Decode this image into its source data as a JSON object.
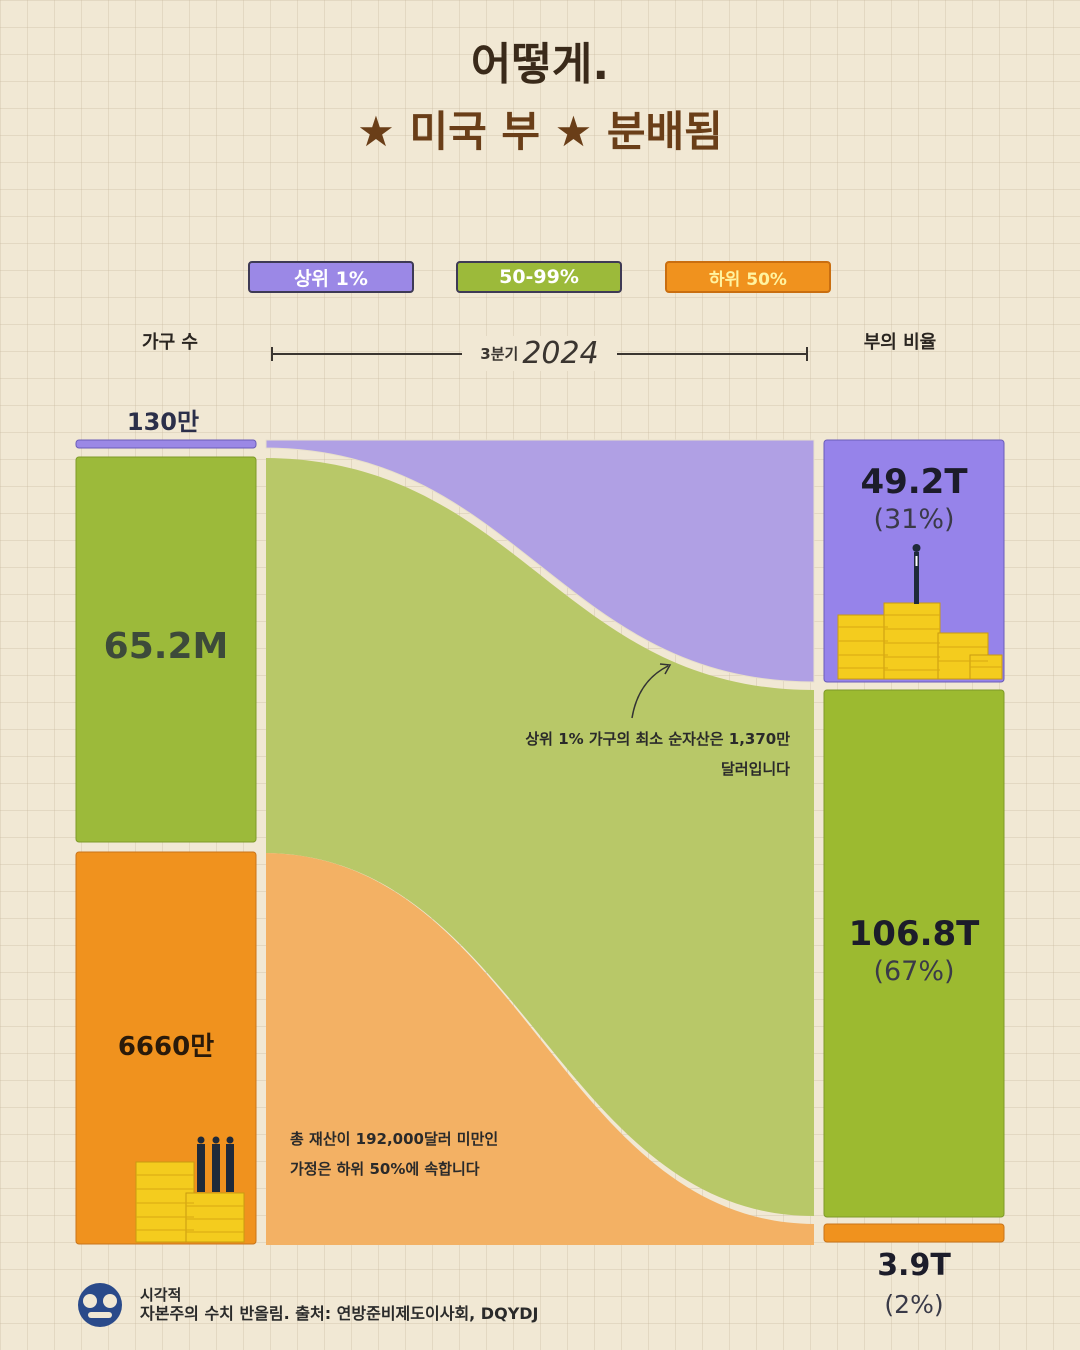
{
  "title": {
    "line1": "어떻게.",
    "line2": "★ 미국 부 ★ 분배됨"
  },
  "legend": [
    {
      "label": "상위 1%",
      "color": "#9b88e6"
    },
    {
      "label": "50-99%",
      "color": "#9cba3a"
    },
    {
      "label": "하위 50%",
      "color": "#f0921e"
    }
  ],
  "headers": {
    "households": "가구 수",
    "wealth_share": "부의 비율",
    "quarter": "3분기",
    "year": "2024"
  },
  "chart_data": {
    "type": "sankey",
    "period": "3분기 2024",
    "left_axis_label": "가구 수",
    "right_axis_label": "부의 비율",
    "series": [
      {
        "name": "상위 1%",
        "households_label": "130만",
        "households": 1300000,
        "wealth_label": "49.2T",
        "wealth_trillion_usd": 49.2,
        "share_label": "(31%)",
        "share_pct": 31,
        "color": "#9b88e6"
      },
      {
        "name": "50-99%",
        "households_label": "65.2M",
        "households": 65200000,
        "wealth_label": "106.8T",
        "wealth_trillion_usd": 106.8,
        "share_label": "(67%)",
        "share_pct": 67,
        "color": "#9cba3a"
      },
      {
        "name": "하위 50%",
        "households_label": "6660만",
        "households": 66600000,
        "wealth_label": "3.9T",
        "wealth_trillion_usd": 3.9,
        "share_label": "(2%)",
        "share_pct": 2,
        "color": "#f0921e"
      }
    ],
    "annotations": [
      {
        "line1": "상위 1% 가구의 최소 순자산은 1,370만",
        "line2": "달러입니다"
      },
      {
        "line1": "총 재산이 192,000달러 미만인",
        "line2": "가정은 하위 50%에 속합니다"
      }
    ]
  },
  "footer": {
    "brand": "시각적",
    "text": "자본주의 수치 반올림. 출처: 연방준비제도이사회, DQYDJ"
  },
  "icons": [
    "businessman-icon",
    "coin-stack-icon",
    "people-icon",
    "logo-icon"
  ]
}
